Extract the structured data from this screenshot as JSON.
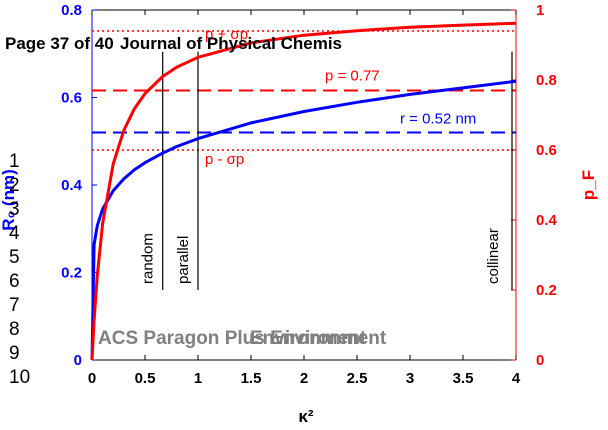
{
  "overlay": {
    "header_text": "Page 37 of 40",
    "header_overlap_text": "Journal of Physical Chemis",
    "watermark_text": "ACS Paragon Plus Environment",
    "watermark_overlap_text": "Environment",
    "line_numbers": [
      "1",
      "2",
      "3",
      "4",
      "5",
      "6",
      "7",
      "8",
      "9",
      "10"
    ]
  },
  "chart_data": {
    "type": "line",
    "x_axis": {
      "label": "κ²",
      "range": [
        0,
        4
      ],
      "ticks": [
        "0",
        "0.5",
        "1",
        "1.5",
        "2",
        "2.5",
        "3",
        "3.5",
        "4"
      ]
    },
    "y_left": {
      "label": "R₀ (nm)",
      "range": [
        0,
        0.8
      ],
      "ticks": [
        "0",
        "0.2",
        "0.4",
        "0.6",
        "0.8"
      ],
      "color": "#0000ff"
    },
    "y_right": {
      "label": "p_F",
      "range": [
        0,
        1
      ],
      "ticks": [
        "0",
        "0.2",
        "0.4",
        "0.6",
        "0.8",
        "1"
      ],
      "color": "#ff0000"
    },
    "series": [
      {
        "name": "R0",
        "axis": "left",
        "color": "#0000ff",
        "points": [
          [
            0,
            0
          ],
          [
            0.02,
            0.264
          ],
          [
            0.05,
            0.307
          ],
          [
            0.1,
            0.345
          ],
          [
            0.2,
            0.387
          ],
          [
            0.3,
            0.414
          ],
          [
            0.4,
            0.435
          ],
          [
            0.5,
            0.451
          ],
          [
            0.667,
            0.473
          ],
          [
            0.8,
            0.488
          ],
          [
            1,
            0.506
          ],
          [
            1.5,
            0.542
          ],
          [
            2,
            0.568
          ],
          [
            2.5,
            0.589
          ],
          [
            3,
            0.607
          ],
          [
            3.5,
            0.622
          ],
          [
            4,
            0.637
          ]
        ]
      },
      {
        "name": "pF",
        "axis": "right",
        "color": "#ff0000",
        "points": [
          [
            0,
            0
          ],
          [
            0.02,
            0.113
          ],
          [
            0.05,
            0.242
          ],
          [
            0.1,
            0.389
          ],
          [
            0.2,
            0.56
          ],
          [
            0.3,
            0.656
          ],
          [
            0.4,
            0.718
          ],
          [
            0.5,
            0.761
          ],
          [
            0.667,
            0.81
          ],
          [
            0.8,
            0.837
          ],
          [
            1,
            0.865
          ],
          [
            1.5,
            0.906
          ],
          [
            2,
            0.928
          ],
          [
            2.5,
            0.941
          ],
          [
            3,
            0.951
          ],
          [
            3.5,
            0.957
          ],
          [
            4,
            0.962
          ]
        ]
      }
    ],
    "reference_lines": [
      {
        "label": "p + σp",
        "axis": "right",
        "value": 0.94,
        "color": "#ff0000",
        "style": "dotted"
      },
      {
        "label": "p = 0.77",
        "axis": "right",
        "value": 0.77,
        "color": "#ff0000",
        "style": "dashed"
      },
      {
        "label": "r = 0.52 nm",
        "axis": "right",
        "value": 0.65,
        "color": "#0000ff",
        "style": "dashed"
      },
      {
        "label": "p - σp",
        "axis": "right",
        "value": 0.6,
        "color": "#ff0000",
        "style": "dotted"
      }
    ],
    "vertical_markers": [
      {
        "label": "random",
        "x": 0.667
      },
      {
        "label": "parallel",
        "x": 1
      },
      {
        "label": "collinear",
        "x": 4
      }
    ],
    "grid": false,
    "legend": "none"
  }
}
